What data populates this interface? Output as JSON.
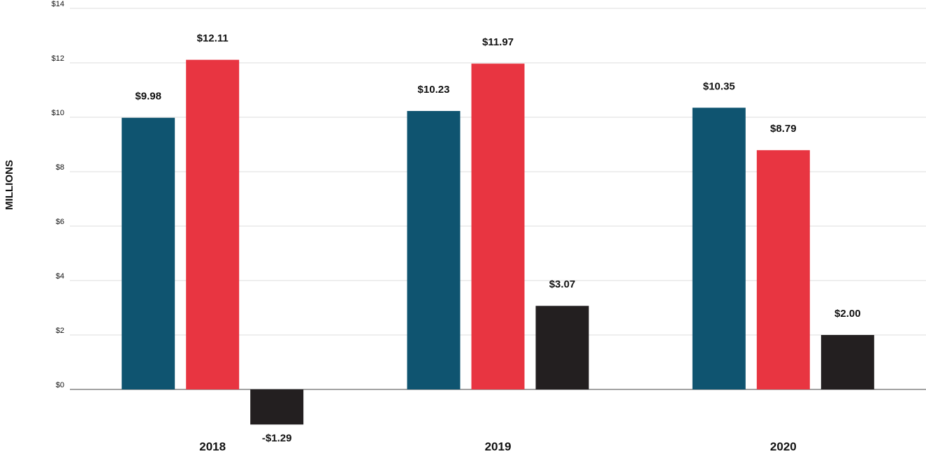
{
  "chart_data": {
    "type": "bar",
    "y_label": "MILLIONS",
    "categories": [
      "2018",
      "2019",
      "2020"
    ],
    "series": [
      {
        "color": "#0f5470",
        "values": [
          9.98,
          10.23,
          10.35
        ],
        "value_labels": [
          "$9.98",
          "$10.23",
          "$10.35"
        ]
      },
      {
        "color": "#e83541",
        "values": [
          12.11,
          11.97,
          8.79
        ],
        "value_labels": [
          "$12.11",
          "$11.97",
          "$8.79"
        ]
      },
      {
        "color": "#231f20",
        "values": [
          -1.29,
          3.07,
          2.0
        ],
        "value_labels": [
          "-$1.29",
          "$3.07",
          "$2.00"
        ]
      }
    ],
    "ylim": [
      -2,
      14
    ],
    "yticks": [
      {
        "value": 0,
        "label": "$0"
      },
      {
        "value": 2,
        "label": "$2"
      },
      {
        "value": 4,
        "label": "$4"
      },
      {
        "value": 6,
        "label": "$6"
      },
      {
        "value": 8,
        "label": "$8"
      },
      {
        "value": 10,
        "label": "$10"
      },
      {
        "value": 12,
        "label": "$12"
      },
      {
        "value": 14,
        "label": "$14"
      }
    ],
    "grid": true
  }
}
